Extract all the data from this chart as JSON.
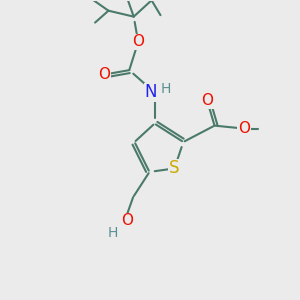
{
  "bg_color": "#ebebeb",
  "bond_color": "#4a7a6a",
  "bond_width": 1.5,
  "atom_colors": {
    "O": "#ee1100",
    "N": "#2222ee",
    "S": "#ccaa00",
    "H": "#5a9090",
    "C": "#4a7a6a"
  },
  "figsize": [
    3.0,
    3.0
  ],
  "dpi": 100,
  "fs": 11
}
